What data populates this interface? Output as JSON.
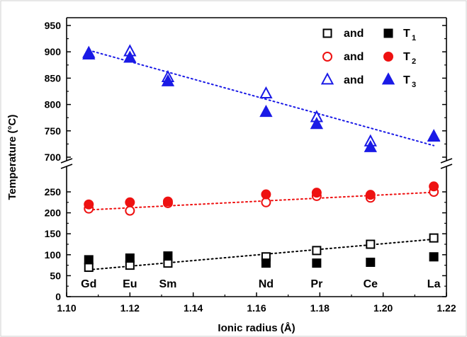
{
  "chart_data": {
    "type": "scatter",
    "xlabel": "Ionic radius (Å)",
    "ylabel": "Temperature (°C)",
    "xlim": [
      1.1,
      1.22
    ],
    "x_ticks": [
      "1.10",
      "1.12",
      "1.14",
      "1.16",
      "1.18",
      "1.20",
      "1.22"
    ],
    "y_axis_break": true,
    "y_segments": [
      {
        "range": [
          0,
          270
        ],
        "ticks": [
          "0",
          "50",
          "100",
          "150",
          "200",
          "250"
        ]
      },
      {
        "range": [
          690,
          950
        ],
        "ticks": [
          "700",
          "750",
          "800",
          "850",
          "900",
          "950"
        ]
      }
    ],
    "elements": [
      {
        "label": "Gd",
        "x": 1.107
      },
      {
        "label": "Eu",
        "x": 1.12
      },
      {
        "label": "Sm",
        "x": 1.132
      },
      {
        "label": "Nd",
        "x": 1.163
      },
      {
        "label": "Pr",
        "x": 1.179
      },
      {
        "label": "Ce",
        "x": 1.196
      },
      {
        "label": "La",
        "x": 1.216
      }
    ],
    "legend": {
      "position": "top-right",
      "rows": [
        {
          "and": "and",
          "label": "T",
          "sub": "1",
          "color": "#000000",
          "open": "square",
          "filled": "square"
        },
        {
          "and": "and",
          "label": "T",
          "sub": "2",
          "color": "#ee1111",
          "open": "circle",
          "filled": "circle"
        },
        {
          "and": "and",
          "label": "T",
          "sub": "3",
          "color": "#1a1ae6",
          "open": "triangle",
          "filled": "triangle"
        }
      ]
    },
    "series": [
      {
        "group": "T1",
        "marker": "square",
        "fill": "open",
        "color": "#000000",
        "x": [
          1.107,
          1.12,
          1.132,
          1.163,
          1.179,
          1.196,
          1.216
        ],
        "y": [
          70,
          75,
          80,
          95,
          110,
          125,
          140
        ]
      },
      {
        "group": "T1",
        "marker": "square",
        "fill": "filled",
        "color": "#000000",
        "x": [
          1.107,
          1.12,
          1.132,
          1.163,
          1.179,
          1.196,
          1.216
        ],
        "y": [
          88,
          92,
          97,
          80,
          80,
          82,
          95
        ]
      },
      {
        "group": "T2",
        "marker": "circle",
        "fill": "open",
        "color": "#ee1111",
        "x": [
          1.107,
          1.12,
          1.132,
          1.163,
          1.179,
          1.196,
          1.216
        ],
        "y": [
          210,
          205,
          223,
          225,
          240,
          236,
          250
        ]
      },
      {
        "group": "T2",
        "marker": "circle",
        "fill": "filled",
        "color": "#ee1111",
        "x": [
          1.107,
          1.12,
          1.132,
          1.163,
          1.179,
          1.196,
          1.216
        ],
        "y": [
          220,
          225,
          227,
          244,
          248,
          243,
          263
        ]
      },
      {
        "group": "T3",
        "marker": "triangle",
        "fill": "open",
        "color": "#1a1ae6",
        "x": [
          1.107,
          1.12,
          1.132,
          1.163,
          1.179,
          1.196,
          1.216
        ],
        "y": [
          897,
          900,
          851,
          820,
          775,
          729,
          738
        ]
      },
      {
        "group": "T3",
        "marker": "triangle",
        "fill": "filled",
        "color": "#1a1ae6",
        "x": [
          1.107,
          1.12,
          1.132,
          1.163,
          1.179,
          1.196,
          1.216
        ],
        "y": [
          894,
          888,
          843,
          785,
          762,
          718,
          739
        ]
      }
    ],
    "fit_lines": [
      {
        "group": "T1",
        "color": "#000000",
        "x": [
          1.107,
          1.216
        ],
        "y": [
          64,
          137
        ]
      },
      {
        "group": "T2",
        "color": "#ee1111",
        "x": [
          1.107,
          1.216
        ],
        "y": [
          207,
          249
        ]
      },
      {
        "group": "T3",
        "color": "#1a1ae6",
        "x": [
          1.107,
          1.216
        ],
        "y": [
          903,
          722
        ]
      }
    ]
  }
}
